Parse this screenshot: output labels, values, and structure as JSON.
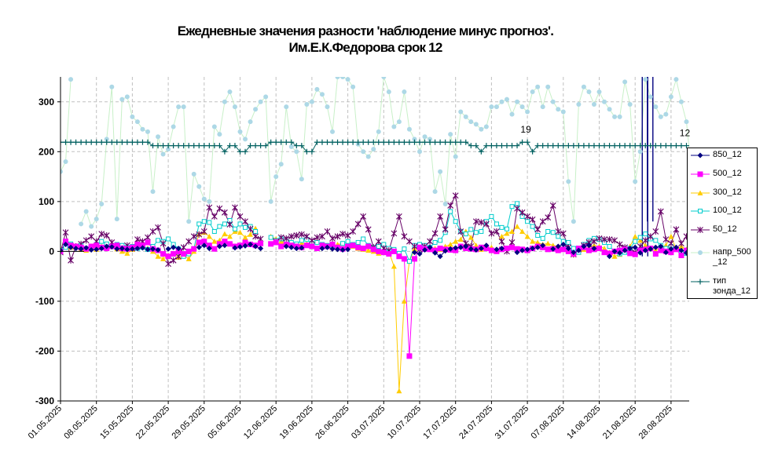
{
  "title_line1": "Ежедневные значения разности 'наблюдение минус прогноз'.",
  "title_line2": "Им.Е.К.Федорова     срок 12",
  "chart_data": {
    "type": "line",
    "ylim": [
      -300,
      350
    ],
    "yticks": [
      -300,
      -200,
      -100,
      0,
      100,
      200,
      300
    ],
    "grid": true,
    "legend_position": "right",
    "x_start": "01.05.2025",
    "x_end": "02.09.2025",
    "xtick_labels": [
      "01.05.2025",
      "08.05.2025",
      "15.05.2025",
      "22.05.2025",
      "29.05.2025",
      "05.06.2025",
      "12.06.2025",
      "19.06.2025",
      "26.06.2025",
      "03.07.2025",
      "10.07.2025",
      "17.07.2025",
      "24.07.2025",
      "31.07.2025",
      "07.08.2025",
      "14.08.2025",
      "21.08.2025",
      "28.08.2025"
    ],
    "annotations": [
      {
        "text": "19",
        "x": "31.07.2025",
        "y": 219
      },
      {
        "text": "12",
        "x": "31.08.2025",
        "y": 212
      }
    ],
    "series": [
      {
        "name": "850_12",
        "color": "#000080",
        "marker": "diamond",
        "values": [
          2,
          14,
          8,
          6,
          5,
          7,
          3,
          4,
          6,
          10,
          9,
          5,
          6,
          4,
          5,
          6,
          7,
          4,
          5,
          3,
          null,
          5,
          8,
          6,
          null,
          null,
          null,
          8,
          12,
          6,
          null,
          10,
          12,
          null,
          7,
          9,
          11,
          14,
          10,
          6,
          null,
          null,
          null,
          null,
          10,
          8,
          6,
          7,
          null,
          null,
          null,
          6,
          8,
          5,
          4,
          3,
          4,
          null,
          null,
          null,
          null,
          null,
          null,
          null,
          null,
          null,
          null,
          null,
          null,
          -2,
          -5,
          3,
          8,
          -3,
          -10,
          1,
          5,
          7,
          8,
          10,
          5,
          3,
          6,
          12,
          null,
          4,
          6,
          null,
          null,
          -2,
          2,
          4,
          6,
          8,
          12,
          null,
          5,
          10,
          14,
          6,
          -2,
          2,
          10,
          12,
          6,
          null,
          null,
          -10,
          0,
          -3,
          2,
          6,
          8,
          -3,
          2,
          5,
          8,
          10,
          -2,
          5,
          8,
          2,
          -3,
          4,
          2,
          -5,
          -8
        ]
      },
      {
        "name": "500_12",
        "color": "#ff00ff",
        "marker": "square",
        "values": [
          0,
          20,
          12,
          10,
          8,
          5,
          10,
          12,
          8,
          6,
          10,
          12,
          6,
          5,
          8,
          14,
          12,
          18,
          5,
          2,
          -5,
          -10,
          -5,
          0,
          -5,
          0,
          5,
          18,
          20,
          12,
          5,
          15,
          20,
          15,
          10,
          12,
          18,
          14,
          12,
          16,
          null,
          15,
          18,
          10,
          14,
          12,
          10,
          8,
          12,
          10,
          6,
          12,
          10,
          14,
          8,
          5,
          10,
          12,
          8,
          6,
          10,
          4,
          0,
          -2,
          -5,
          0,
          -10,
          -15,
          -210,
          -15,
          8,
          5,
          4,
          2,
          6,
          4,
          3,
          2,
          10,
          6,
          5,
          4,
          8,
          6,
          2,
          0,
          4,
          6,
          8,
          5,
          4,
          2,
          6,
          10,
          8,
          4,
          5,
          2,
          4,
          0,
          -5,
          6,
          8,
          2,
          4,
          6,
          -2,
          -4,
          0,
          2,
          4,
          -4,
          -6,
          2,
          4,
          6,
          -5,
          2,
          0,
          -2,
          4,
          -8,
          2,
          6,
          4,
          -4,
          0,
          -6,
          -10
        ]
      },
      {
        "name": "300_12",
        "color": "#ffcc00",
        "marker": "triangle",
        "values": [
          5,
          10,
          8,
          10,
          4,
          2,
          6,
          4,
          10,
          8,
          12,
          5,
          0,
          -4,
          4,
          8,
          10,
          6,
          0,
          -10,
          -15,
          -8,
          -5,
          -12,
          -8,
          -15,
          0,
          35,
          38,
          30,
          20,
          22,
          35,
          30,
          40,
          38,
          28,
          34,
          46,
          null,
          null,
          30,
          25,
          20,
          18,
          14,
          12,
          16,
          15,
          18,
          20,
          10,
          12,
          8,
          14,
          16,
          12,
          10,
          6,
          4,
          2,
          0,
          -4,
          -2,
          0,
          -30,
          -280,
          -100,
          -20,
          5,
          10,
          12,
          8,
          6,
          4,
          10,
          14,
          20,
          24,
          40,
          28,
          12,
          4,
          6,
          8,
          null,
          30,
          36,
          40,
          50,
          40,
          30,
          20,
          18,
          14,
          16,
          12,
          10,
          6,
          2,
          -6,
          -2,
          4,
          8,
          12,
          10,
          6,
          -2,
          -10,
          -6,
          4,
          10,
          30,
          22,
          12,
          6,
          2,
          8,
          12,
          30,
          4,
          10,
          4,
          -2,
          -4,
          -6,
          -10
        ]
      },
      {
        "name": "100_12",
        "color": "#00cccc",
        "marker": "square-open",
        "values": [
          2,
          8,
          15,
          10,
          12,
          6,
          8,
          14,
          20,
          15,
          10,
          14,
          12,
          8,
          10,
          6,
          8,
          4,
          10,
          22,
          20,
          25,
          14,
          5,
          -10,
          -5,
          5,
          55,
          60,
          58,
          40,
          50,
          55,
          62,
          45,
          55,
          48,
          50,
          40,
          null,
          null,
          28,
          22,
          25,
          20,
          18,
          15,
          22,
          24,
          16,
          18,
          14,
          12,
          10,
          8,
          16,
          20,
          14,
          18,
          25,
          12,
          8,
          10,
          14,
          6,
          4,
          -4,
          5,
          -20,
          12,
          14,
          12,
          8,
          18,
          22,
          38,
          80,
          60,
          40,
          35,
          44,
          38,
          40,
          60,
          70,
          55,
          48,
          45,
          90,
          96,
          70,
          60,
          50,
          32,
          26,
          40,
          38,
          30,
          20,
          18,
          6,
          -2,
          14,
          22,
          26,
          24,
          18,
          10,
          0,
          -5,
          -2,
          6,
          20,
          28,
          35,
          25,
          22,
          12,
          6,
          10,
          4,
          -4,
          -4,
          -6
        ]
      },
      {
        "name": "50_12",
        "color": "#660066",
        "marker": "star",
        "values": [
          -2,
          38,
          -18,
          10,
          15,
          22,
          30,
          20,
          35,
          32,
          18,
          10,
          6,
          12,
          6,
          24,
          20,
          28,
          40,
          48,
          16,
          -25,
          -18,
          -10,
          8,
          20,
          30,
          34,
          40,
          88,
          70,
          86,
          78,
          54,
          88,
          70,
          60,
          45,
          30,
          25,
          null,
          null,
          20,
          28,
          26,
          30,
          32,
          34,
          30,
          22,
          28,
          30,
          40,
          26,
          30,
          35,
          32,
          40,
          55,
          70,
          44,
          8,
          20,
          6,
          2,
          36,
          70,
          30,
          20,
          10,
          4,
          10,
          20,
          36,
          70,
          44,
          92,
          112,
          40,
          16,
          10,
          60,
          58,
          55,
          36,
          40,
          20,
          0,
          18,
          86,
          78,
          70,
          64,
          44,
          60,
          68,
          92,
          40,
          36,
          8,
          -6,
          4,
          12,
          18,
          20,
          26,
          24,
          24,
          22,
          14,
          8,
          4,
          -2,
          10,
          22,
          30,
          40,
          80,
          24,
          16,
          44,
          16,
          30,
          60,
          -10,
          -8
        ]
      },
      {
        "name": "напр_500\n_12",
        "color": "#add8e6",
        "marker": "circle",
        "line_color": "#c8f0c8",
        "values": [
          160,
          180,
          345,
          null,
          55,
          80,
          50,
          65,
          95,
          225,
          330,
          65,
          305,
          310,
          270,
          260,
          245,
          240,
          120,
          230,
          195,
          205,
          250,
          290,
          290,
          60,
          155,
          130,
          105,
          100,
          250,
          235,
          300,
          320,
          290,
          240,
          225,
          260,
          285,
          300,
          310,
          100,
          150,
          175,
          290,
          210,
          200,
          145,
          295,
          300,
          325,
          315,
          290,
          240,
          350,
          350,
          345,
          330,
          215,
          200,
          190,
          205,
          240,
          350,
          320,
          250,
          260,
          320,
          245,
          225,
          200,
          230,
          225,
          120,
          160,
          95,
          235,
          190,
          280,
          270,
          260,
          255,
          245,
          250,
          290,
          290,
          300,
          305,
          275,
          300,
          290,
          280,
          320,
          330,
          290,
          330,
          300,
          285,
          280,
          140,
          60,
          295,
          330,
          320,
          295,
          320,
          300,
          285,
          270,
          270,
          340,
          295,
          140,
          200,
          345,
          310,
          290,
          270,
          275,
          310,
          345,
          300,
          260,
          160,
          330,
          175,
          140
        ]
      },
      {
        "name": "тип\nзонда_12",
        "color": "#006060",
        "marker": "plus",
        "values": [
          219,
          219,
          219,
          219,
          219,
          219,
          219,
          219,
          219,
          219,
          219,
          219,
          219,
          219,
          219,
          219,
          219,
          219,
          212,
          212,
          212,
          212,
          212,
          212,
          212,
          212,
          212,
          212,
          212,
          212,
          212,
          212,
          200,
          212,
          212,
          200,
          200,
          212,
          212,
          212,
          212,
          219,
          219,
          219,
          219,
          219,
          212,
          212,
          200,
          200,
          219,
          219,
          219,
          219,
          219,
          219,
          219,
          219,
          219,
          219,
          219,
          219,
          219,
          219,
          219,
          219,
          219,
          219,
          219,
          219,
          219,
          219,
          219,
          219,
          219,
          219,
          219,
          219,
          219,
          219,
          212,
          212,
          200,
          212,
          212,
          212,
          212,
          212,
          212,
          212,
          219,
          219,
          200,
          212,
          212,
          212,
          212,
          212,
          212,
          212,
          212,
          212,
          212,
          212,
          212,
          212,
          212,
          212,
          212,
          212,
          212,
          212,
          212,
          212,
          212,
          212,
          212,
          212,
          212,
          212,
          212,
          212,
          212,
          212,
          212,
          212,
          212
        ]
      }
    ],
    "spikes": [
      {
        "series": "850_12",
        "date": "23.08.2025",
        "values": [
          350,
          -10
        ]
      },
      {
        "series": "850_12",
        "date": "24.08.2025",
        "values": [
          350,
          60
        ]
      }
    ]
  },
  "colors": {
    "grid": "#c0c0c0",
    "axis": "#000000",
    "plot_bg": "#ffffff"
  }
}
